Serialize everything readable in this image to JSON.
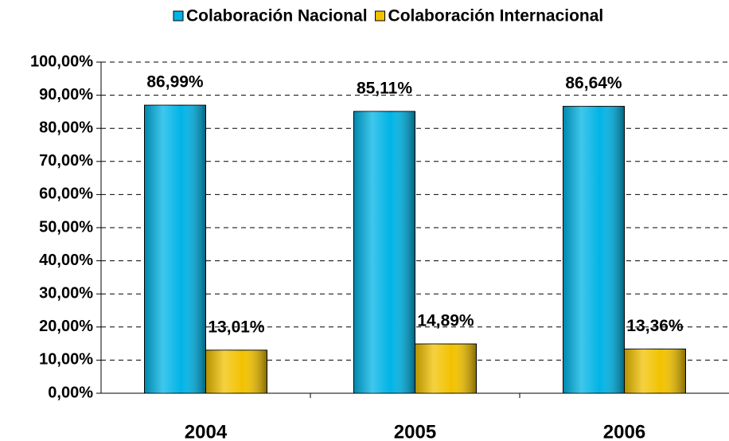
{
  "chart_data": {
    "type": "bar",
    "categories": [
      "2004",
      "2005",
      "2006"
    ],
    "series": [
      {
        "name": "Colaboración Nacional",
        "color": "#00b4e6",
        "values": [
          86.99,
          85.11,
          86.64
        ],
        "value_labels": [
          "86,99%",
          "85,11%",
          "86,64%"
        ]
      },
      {
        "name": "Colaboración Internacional",
        "color": "#f2c200",
        "values": [
          13.01,
          14.89,
          13.36
        ],
        "value_labels": [
          "13,01%",
          "14,89%",
          "13,36%"
        ]
      }
    ],
    "ylim": [
      0,
      100
    ],
    "yticks": [
      {
        "value": 0,
        "label": "0,00%"
      },
      {
        "value": 10,
        "label": "10,00%"
      },
      {
        "value": 20,
        "label": "20,00%"
      },
      {
        "value": 30,
        "label": "30,00%"
      },
      {
        "value": 40,
        "label": "40,00%"
      },
      {
        "value": 50,
        "label": "50,00%"
      },
      {
        "value": 60,
        "label": "60,00%"
      },
      {
        "value": 70,
        "label": "70,00%"
      },
      {
        "value": 80,
        "label": "80,00%"
      },
      {
        "value": 90,
        "label": "90,00%"
      },
      {
        "value": 100,
        "label": "100,00%"
      }
    ],
    "grid": true,
    "legend": "top"
  }
}
